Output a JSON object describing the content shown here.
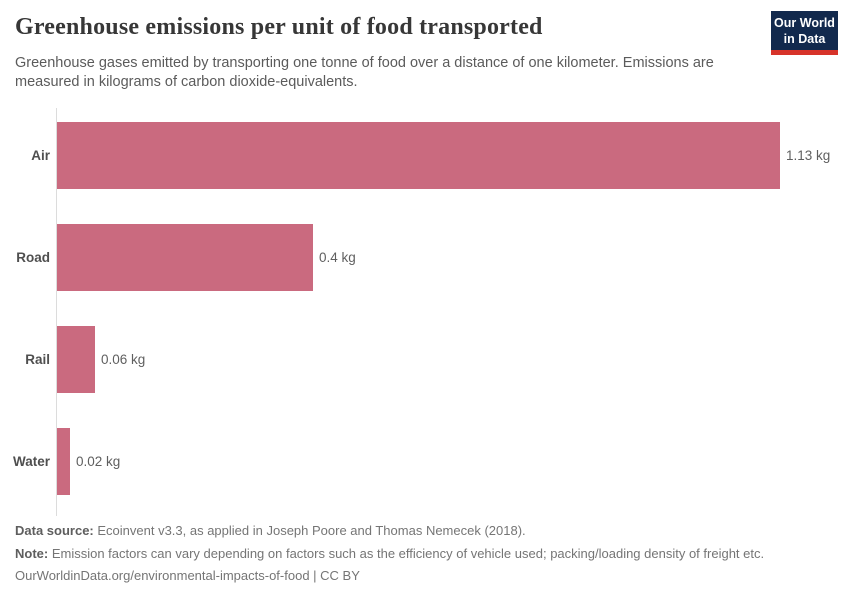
{
  "header": {
    "title": "Greenhouse emissions per unit of food transported",
    "subtitle": "Greenhouse gases emitted by transporting one tonne of food over a distance of one kilometer. Emissions are measured in kilograms of carbon dioxide-equivalents.",
    "logo": {
      "line1": "Our World",
      "line2": "in Data",
      "bg_color": "#12294d",
      "stripe_color": "#d7332a"
    }
  },
  "chart_data": {
    "type": "bar",
    "orientation": "horizontal",
    "title": "Greenhouse emissions per unit of food transported",
    "categories": [
      "Air",
      "Road",
      "Rail",
      "Water"
    ],
    "values": [
      1.13,
      0.4,
      0.06,
      0.02
    ],
    "value_labels": [
      "1.13 kg",
      "0.4 kg",
      "0.06 kg",
      "0.02 kg"
    ],
    "unit": "kg",
    "xlabel": "",
    "ylabel": "",
    "xlim": [
      0,
      1.13
    ],
    "grid": false,
    "legend": "none",
    "bar_color": "#ca6a7f",
    "axis_line_color": "#dcdcdc"
  },
  "footer": {
    "data_source_label": "Data source:",
    "data_source_text": " Ecoinvent v3.3, as applied in Joseph Poore and Thomas Nemecek (2018).",
    "note_label": "Note:",
    "note_text": " Emission factors can vary depending on factors such as the efficiency of vehicle used; packing/loading density of freight etc.",
    "url_text": "OurWorldinData.org/environmental-impacts-of-food | CC BY"
  }
}
